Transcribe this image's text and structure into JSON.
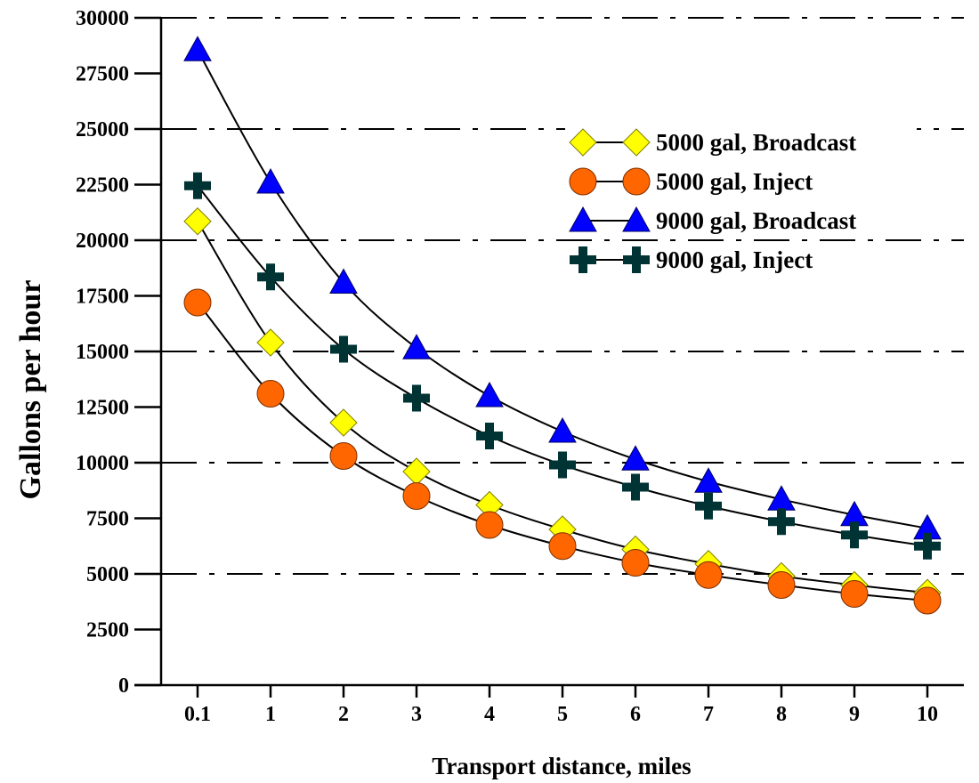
{
  "chart_data": {
    "type": "line",
    "title": "",
    "xlabel": "Transport distance, miles",
    "ylabel": "Gallons per hour",
    "categories": [
      "0.1",
      "1",
      "2",
      "3",
      "4",
      "5",
      "6",
      "7",
      "8",
      "9",
      "10"
    ],
    "ylim": [
      0,
      30000
    ],
    "yticks": [
      "0",
      "2500",
      "5000",
      "7500",
      "10000",
      "12500",
      "15000",
      "17500",
      "20000",
      "22500",
      "25000",
      "27500",
      "30000"
    ],
    "grid": "dash-dot horizontal at every 5000",
    "legend_position": "upper-right",
    "series": [
      {
        "name": "5000 gal, Broadcast",
        "marker": "diamond",
        "color": "#ffff00",
        "values": [
          20850,
          15400,
          11800,
          9600,
          8100,
          7000,
          6100,
          5450,
          4900,
          4500,
          4150
        ]
      },
      {
        "name": "5000 gal, Inject",
        "marker": "circle",
        "color": "#ff6600",
        "values": [
          17200,
          13100,
          10300,
          8500,
          7200,
          6250,
          5500,
          4950,
          4500,
          4100,
          3800
        ]
      },
      {
        "name": "9000 gal, Broadcast",
        "marker": "triangle",
        "color": "#0000ff",
        "values": [
          28550,
          22600,
          18100,
          15150,
          13000,
          11400,
          10150,
          9150,
          8350,
          7650,
          7050
        ]
      },
      {
        "name": "9000 gal, Inject",
        "marker": "plus",
        "color": "#003333",
        "values": [
          22450,
          18350,
          15100,
          12900,
          11200,
          9900,
          8900,
          8050,
          7350,
          6750,
          6250
        ]
      }
    ]
  }
}
